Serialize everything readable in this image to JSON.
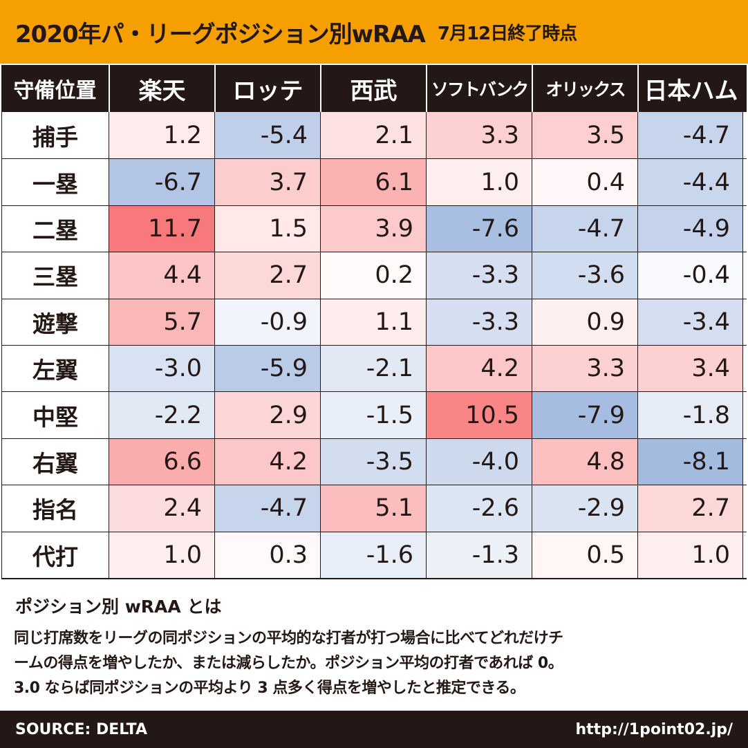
{
  "title": {
    "main": "2020年パ・リーグポジション別wRAA",
    "date": "7月12日終了時点"
  },
  "chart_data": {
    "type": "table",
    "title": "2020年パ・リーグポジション別wRAA",
    "subtitle": "7月12日終了時点",
    "corner_label": "守備位置",
    "columns": [
      "楽天",
      "ロッテ",
      "西武",
      "ソフトバンク",
      "オリックス",
      "日本ハム"
    ],
    "rows": [
      {
        "position": "捕手",
        "values": [
          1.2,
          -5.4,
          2.1,
          3.3,
          3.5,
          -4.7
        ],
        "labels": [
          "1.2",
          "-5.4",
          "2.1",
          "3.3",
          "3.5",
          "-4.7"
        ]
      },
      {
        "position": "一塁",
        "values": [
          -6.7,
          3.7,
          6.1,
          1.0,
          0.4,
          -4.4
        ],
        "labels": [
          "-6.7",
          "3.7",
          "6.1",
          "1.0",
          "0.4",
          "-4.4"
        ]
      },
      {
        "position": "二塁",
        "values": [
          11.7,
          1.5,
          3.9,
          -7.6,
          -4.7,
          -4.9
        ],
        "labels": [
          "11.7",
          "1.5",
          "3.9",
          "-7.6",
          "-4.7",
          "-4.9"
        ]
      },
      {
        "position": "三塁",
        "values": [
          4.4,
          2.7,
          0.2,
          -3.3,
          -3.6,
          -0.4
        ],
        "labels": [
          "4.4",
          "2.7",
          "0.2",
          "-3.3",
          "-3.6",
          "-0.4"
        ]
      },
      {
        "position": "遊撃",
        "values": [
          5.7,
          -0.9,
          1.1,
          -3.3,
          0.9,
          -3.4
        ],
        "labels": [
          "5.7",
          "-0.9",
          "1.1",
          "-3.3",
          "0.9",
          "-3.4"
        ]
      },
      {
        "position": "左翼",
        "values": [
          -3.0,
          -5.9,
          -2.1,
          4.2,
          3.3,
          3.4
        ],
        "labels": [
          "-3.0",
          "-5.9",
          "-2.1",
          "4.2",
          "3.3",
          "3.4"
        ]
      },
      {
        "position": "中堅",
        "values": [
          -2.2,
          2.9,
          -1.5,
          10.5,
          -7.9,
          -1.8
        ],
        "labels": [
          "-2.2",
          "2.9",
          "-1.5",
          "10.5",
          "-7.9",
          "-1.8"
        ]
      },
      {
        "position": "右翼",
        "values": [
          6.6,
          4.2,
          -3.5,
          -4.0,
          4.8,
          -8.1
        ],
        "labels": [
          "6.6",
          "4.2",
          "-3.5",
          "-4.0",
          "4.8",
          "-8.1"
        ]
      },
      {
        "position": "指名",
        "values": [
          2.4,
          -4.7,
          5.1,
          -2.6,
          -2.9,
          2.7
        ],
        "labels": [
          "2.4",
          "-4.7",
          "5.1",
          "-2.6",
          "-2.9",
          "2.7"
        ]
      },
      {
        "position": "代打",
        "values": [
          1.0,
          0.3,
          -1.6,
          -1.3,
          0.5,
          1.0
        ],
        "labels": [
          "1.0",
          "0.3",
          "-1.6",
          "-1.3",
          "0.5",
          "1.0"
        ]
      }
    ]
  },
  "colors": {
    "header_bg": "#f5a000",
    "table_header_bg": "#231815",
    "positive": "#f87a7c",
    "negative": "#8eaad6"
  },
  "note": {
    "title": "ポジション別 wRAA とは",
    "lines": [
      "同じ打席数をリーグの同ポジションの平均的な打者が打つ場合に比べてどれだけチ",
      "ームの得点を増やしたか、または減らしたか。ポジション平均の打者であれば 0。",
      "3.0 ならば同ポジションの平均より 3 点多く得点を増やしたと推定できる。"
    ]
  },
  "footer": {
    "source": "SOURCE: DELTA",
    "url": "http://1point02.jp/"
  }
}
